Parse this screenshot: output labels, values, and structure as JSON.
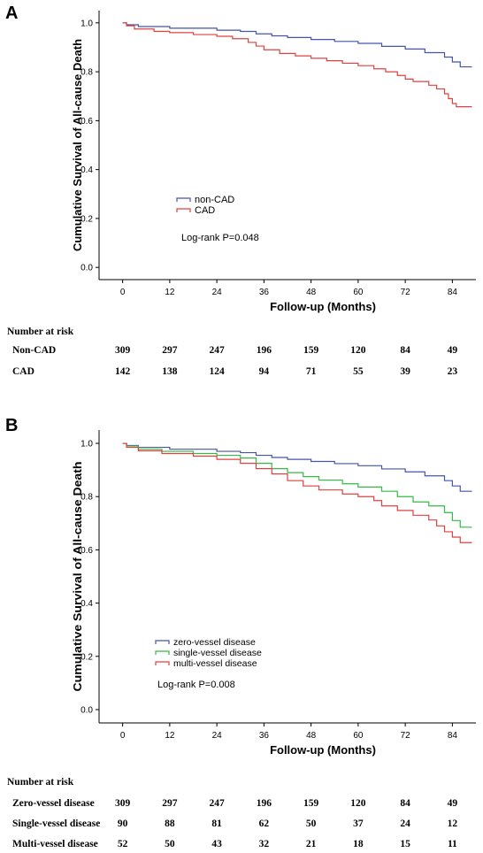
{
  "chart_data": [
    {
      "panel": "A",
      "type": "line",
      "step": true,
      "ylabel": "Cumulative Survival of All-cause Death",
      "xlabel": "Follow-up (Months)",
      "xlim": [
        -6,
        90
      ],
      "ylim": [
        -0.05,
        1.05
      ],
      "x_ticks": [
        0,
        12,
        24,
        36,
        48,
        60,
        72,
        84
      ],
      "y_ticks": [
        0.0,
        0.2,
        0.4,
        0.6,
        0.8,
        1.0
      ],
      "y_tick_labels": [
        "0.0",
        "0.2",
        "0.4",
        "0.6",
        "0.8",
        "1.0"
      ],
      "annotation": "Log-rank P=0.048",
      "legend_position": "lower-left",
      "series": [
        {
          "name": "non-CAD",
          "color": "#4455aa",
          "points": [
            [
              0,
              1.0
            ],
            [
              1,
              0.992
            ],
            [
              4,
              0.985
            ],
            [
              12,
              0.978
            ],
            [
              24,
              0.97
            ],
            [
              30,
              0.965
            ],
            [
              34,
              0.955
            ],
            [
              38,
              0.947
            ],
            [
              42,
              0.94
            ],
            [
              48,
              0.932
            ],
            [
              54,
              0.924
            ],
            [
              60,
              0.916
            ],
            [
              66,
              0.904
            ],
            [
              72,
              0.893
            ],
            [
              77,
              0.878
            ],
            [
              82,
              0.86
            ],
            [
              84,
              0.84
            ],
            [
              86,
              0.82
            ],
            [
              89,
              0.82
            ]
          ]
        },
        {
          "name": "CAD",
          "color": "#e04040",
          "points": [
            [
              0,
              1.0
            ],
            [
              1,
              0.988
            ],
            [
              3,
              0.975
            ],
            [
              8,
              0.965
            ],
            [
              12,
              0.96
            ],
            [
              18,
              0.952
            ],
            [
              24,
              0.945
            ],
            [
              28,
              0.935
            ],
            [
              32,
              0.92
            ],
            [
              34,
              0.905
            ],
            [
              36,
              0.89
            ],
            [
              40,
              0.875
            ],
            [
              44,
              0.865
            ],
            [
              48,
              0.855
            ],
            [
              52,
              0.845
            ],
            [
              56,
              0.835
            ],
            [
              60,
              0.825
            ],
            [
              64,
              0.812
            ],
            [
              67,
              0.8
            ],
            [
              70,
              0.785
            ],
            [
              72,
              0.77
            ],
            [
              74,
              0.76
            ],
            [
              78,
              0.745
            ],
            [
              80,
              0.73
            ],
            [
              82,
              0.71
            ],
            [
              83,
              0.69
            ],
            [
              84,
              0.67
            ],
            [
              85,
              0.657
            ],
            [
              89,
              0.657
            ]
          ]
        }
      ],
      "risk_table": {
        "title": "Number at risk",
        "rows": [
          {
            "label": "Non-CAD",
            "values": [
              "309",
              "297",
              "247",
              "196",
              "159",
              "120",
              "84",
              "49"
            ]
          },
          {
            "label": "CAD",
            "values": [
              "142",
              "138",
              "124",
              "94",
              "71",
              "55",
              "39",
              "23"
            ]
          }
        ]
      }
    },
    {
      "panel": "B",
      "type": "line",
      "step": true,
      "ylabel": "Cumulative Survival of All-cause Death",
      "xlabel": "Follow-up (Months)",
      "xlim": [
        -6,
        90
      ],
      "ylim": [
        -0.05,
        1.05
      ],
      "x_ticks": [
        0,
        12,
        24,
        36,
        48,
        60,
        72,
        84
      ],
      "y_ticks": [
        0.0,
        0.2,
        0.4,
        0.6,
        0.8,
        1.0
      ],
      "y_tick_labels": [
        "0.0",
        "0.2",
        "0.4",
        "0.6",
        "0.8",
        "1.0"
      ],
      "annotation": "Log-rank P=0.008",
      "legend_position": "lower-left",
      "series": [
        {
          "name": "zero-vessel disease",
          "color": "#4455aa",
          "points": [
            [
              0,
              1.0
            ],
            [
              1,
              0.992
            ],
            [
              4,
              0.985
            ],
            [
              12,
              0.978
            ],
            [
              24,
              0.97
            ],
            [
              30,
              0.965
            ],
            [
              34,
              0.955
            ],
            [
              38,
              0.947
            ],
            [
              42,
              0.94
            ],
            [
              48,
              0.932
            ],
            [
              54,
              0.924
            ],
            [
              60,
              0.916
            ],
            [
              66,
              0.904
            ],
            [
              72,
              0.893
            ],
            [
              77,
              0.878
            ],
            [
              82,
              0.86
            ],
            [
              84,
              0.84
            ],
            [
              86,
              0.82
            ],
            [
              89,
              0.82
            ]
          ]
        },
        {
          "name": "single-vessel disease",
          "color": "#33bb44",
          "points": [
            [
              0,
              1.0
            ],
            [
              1,
              0.99
            ],
            [
              4,
              0.978
            ],
            [
              10,
              0.97
            ],
            [
              18,
              0.962
            ],
            [
              24,
              0.955
            ],
            [
              30,
              0.945
            ],
            [
              34,
              0.925
            ],
            [
              38,
              0.905
            ],
            [
              42,
              0.89
            ],
            [
              46,
              0.875
            ],
            [
              50,
              0.862
            ],
            [
              56,
              0.848
            ],
            [
              60,
              0.836
            ],
            [
              66,
              0.82
            ],
            [
              70,
              0.8
            ],
            [
              74,
              0.78
            ],
            [
              78,
              0.765
            ],
            [
              82,
              0.74
            ],
            [
              84,
              0.71
            ],
            [
              86,
              0.685
            ],
            [
              89,
              0.685
            ]
          ]
        },
        {
          "name": "multi-vessel disease",
          "color": "#e04040",
          "points": [
            [
              0,
              1.0
            ],
            [
              1,
              0.985
            ],
            [
              4,
              0.972
            ],
            [
              10,
              0.962
            ],
            [
              18,
              0.952
            ],
            [
              24,
              0.94
            ],
            [
              30,
              0.925
            ],
            [
              34,
              0.905
            ],
            [
              38,
              0.885
            ],
            [
              42,
              0.86
            ],
            [
              46,
              0.84
            ],
            [
              50,
              0.825
            ],
            [
              56,
              0.81
            ],
            [
              60,
              0.8
            ],
            [
              64,
              0.785
            ],
            [
              66,
              0.765
            ],
            [
              70,
              0.748
            ],
            [
              74,
              0.73
            ],
            [
              78,
              0.712
            ],
            [
              80,
              0.69
            ],
            [
              82,
              0.668
            ],
            [
              84,
              0.648
            ],
            [
              86,
              0.627
            ],
            [
              89,
              0.627
            ]
          ]
        }
      ],
      "risk_table": {
        "title": "Number at risk",
        "rows": [
          {
            "label": "Zero-vessel disease",
            "values": [
              "309",
              "297",
              "247",
              "196",
              "159",
              "120",
              "84",
              "49"
            ]
          },
          {
            "label": "Single-vessel disease",
            "values": [
              "90",
              "88",
              "81",
              "62",
              "50",
              "37",
              "24",
              "12"
            ]
          },
          {
            "label": "Multi-vessel disease",
            "values": [
              "52",
              "50",
              "43",
              "32",
              "21",
              "18",
              "15",
              "11"
            ]
          }
        ]
      }
    }
  ]
}
